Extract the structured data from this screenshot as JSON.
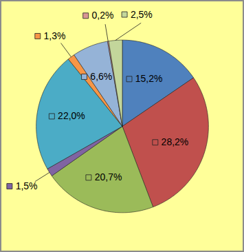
{
  "chart_data": {
    "type": "pie",
    "values": [
      15.2,
      28.2,
      20.7,
      1.5,
      22.0,
      1.3,
      6.6,
      0.2,
      2.5
    ],
    "value_labels": [
      "15,2%",
      "28,2%",
      "20,7%",
      "1,5%",
      "22,0%",
      "1,3%",
      "6,6%",
      "0,2%",
      "2,5%"
    ],
    "colors": [
      "#4f81bd",
      "#c0504d",
      "#9bbb59",
      "#8064a2",
      "#4bacc6",
      "#f79646",
      "#95b3d7",
      "#d99694",
      "#c3d69b"
    ],
    "data_labels": true
  }
}
